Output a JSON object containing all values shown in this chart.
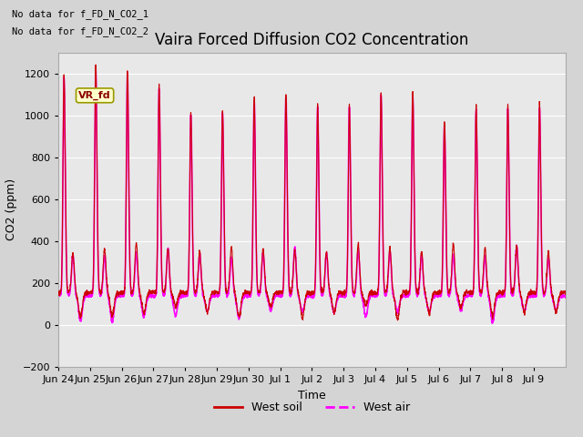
{
  "title": "Vaira Forced Diffusion CO2 Concentration",
  "xlabel": "Time",
  "ylabel": "CO2 (ppm)",
  "ylim": [
    -200,
    1300
  ],
  "yticks": [
    -200,
    0,
    200,
    400,
    600,
    800,
    1000,
    1200
  ],
  "plot_bg_color": "#e8e8e8",
  "fig_bg_color": "#d8d8d8",
  "annotation_text1": "No data for f_FD_N_CO2_1",
  "annotation_text2": "No data for f_FD_N_CO2_2",
  "label_box_text": "VR_fd",
  "label_box_color": "#ffffcc",
  "label_box_border": "#999900",
  "west_soil_color": "#cc0000",
  "west_air_color": "#ff00ff",
  "legend_soil_label": "West soil",
  "legend_air_label": "West air",
  "grid_color": "#ffffff",
  "title_fontsize": 12,
  "axis_fontsize": 9,
  "tick_fontsize": 8,
  "peak_heights": [
    1040,
    1090,
    1060,
    990,
    860,
    870,
    930,
    950,
    900,
    900,
    960,
    960,
    820,
    890,
    890,
    900
  ],
  "xtick_labels": [
    "Jun 24",
    "Jun 25",
    "Jun 26",
    "Jun 27",
    "Jun 28",
    "Jun 29",
    "Jun 30",
    "Jul 1",
    "Jul 2",
    "Jul 3",
    "Jul 4",
    "Jul 5",
    "Jul 6",
    "Jul 7",
    "Jul 8",
    "Jul 9"
  ]
}
